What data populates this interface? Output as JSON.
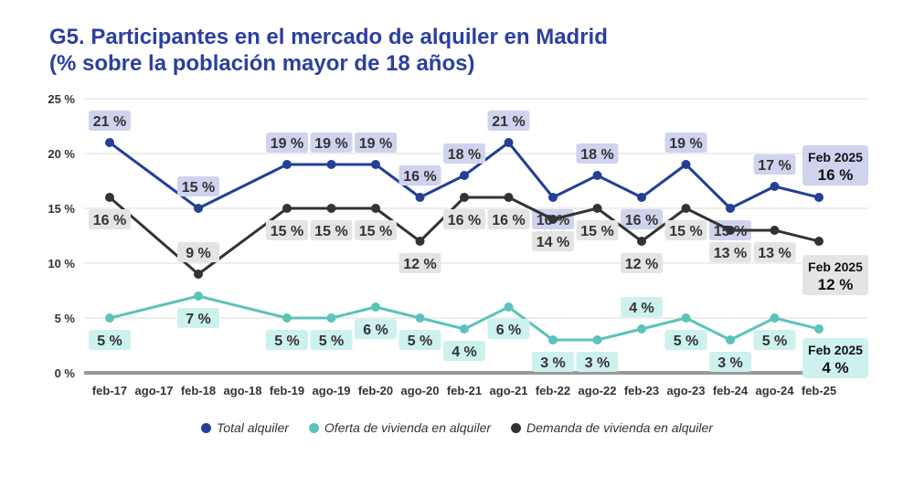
{
  "title_line1": "G5. Participantes en el mercado de alquiler en Madrid",
  "title_line2": "(% sobre la población mayor de 18 años)",
  "chart_data": {
    "type": "line",
    "categories": [
      "feb-17",
      "ago-17",
      "feb-18",
      "ago-18",
      "feb-19",
      "ago-19",
      "feb-20",
      "ago-20",
      "feb-21",
      "ago-21",
      "feb-22",
      "ago-22",
      "feb-23",
      "ago-23",
      "feb-24",
      "ago-24",
      "feb-25"
    ],
    "x_ticks": [
      "feb-17",
      "ago-17",
      "feb-18",
      "ago-18",
      "feb-19",
      "ago-19",
      "feb-20",
      "ago-20",
      "feb-21",
      "ago-21",
      "feb-22",
      "ago-22",
      "feb-23",
      "ago-23",
      "feb-24",
      "ago-24",
      "feb-25"
    ],
    "y_ticks": [
      "0 %",
      "5 %",
      "10 %",
      "15 %",
      "20 %",
      "25 %"
    ],
    "ylim": [
      0,
      25
    ],
    "series": [
      {
        "name": "Total alquiler",
        "color": "#233f96",
        "label_bg": "#cfd3ee",
        "values": [
          21,
          null,
          15,
          null,
          19,
          19,
          19,
          16,
          18,
          21,
          16,
          18,
          16,
          19,
          15,
          17,
          16
        ],
        "labels": [
          "21 %",
          null,
          "15 %",
          null,
          "19 %",
          "19 %",
          "19 %",
          "16 %",
          "18 %",
          "21 %",
          "16 %",
          "18 %",
          "16 %",
          "19 %",
          "15 %",
          "17 %",
          null
        ],
        "final_period": "Feb 2025",
        "final_value": "16 %"
      },
      {
        "name": "Oferta de vivienda en alquiler",
        "color": "#5cc3bb",
        "label_bg": "#cdf1ee",
        "values": [
          5,
          null,
          7,
          null,
          5,
          5,
          6,
          5,
          4,
          6,
          3,
          3,
          4,
          5,
          3,
          5,
          4
        ],
        "labels": [
          "5 %",
          null,
          "7 %",
          null,
          "5 %",
          "5 %",
          "6 %",
          "5 %",
          "4 %",
          "6 %",
          "3 %",
          "3 %",
          "4 %",
          "5 %",
          "3 %",
          "5 %",
          null
        ],
        "final_period": "Feb 2025",
        "final_value": "4 %"
      },
      {
        "name": "Demanda de vivienda en alquiler",
        "color": "#333333",
        "label_bg": "#e4e4e4",
        "values": [
          16,
          null,
          9,
          null,
          15,
          15,
          15,
          12,
          16,
          16,
          14,
          15,
          12,
          15,
          13,
          13,
          12
        ],
        "labels": [
          "16 %",
          null,
          "9 %",
          null,
          "15 %",
          "15 %",
          "15 %",
          "12 %",
          "16 %",
          "16 %",
          "14 %",
          "15 %",
          "12 %",
          "15 %",
          "13 %",
          "13 %",
          null
        ],
        "final_period": "Feb 2025",
        "final_value": "12 %"
      }
    ]
  },
  "legend": {
    "items": [
      {
        "label": "Total alquiler",
        "color": "#233f96"
      },
      {
        "label": "Oferta de vivienda en alquiler",
        "color": "#5cc3bb"
      },
      {
        "label": "Demanda de vivienda en alquiler",
        "color": "#333333"
      }
    ]
  }
}
